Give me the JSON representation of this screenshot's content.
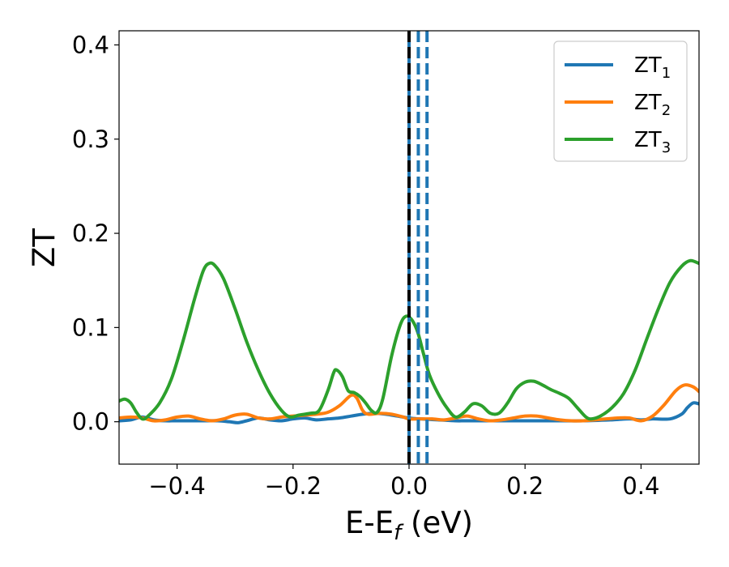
{
  "chart_data": {
    "type": "line",
    "title": "",
    "xlabel": "E-E",
    "xlabel_sub": "f",
    "xlabel_unit": " (eV)",
    "ylabel": "ZT",
    "xlim": [
      -0.5,
      0.5
    ],
    "ylim": [
      -0.045,
      0.415
    ],
    "xticks": [
      -0.4,
      -0.2,
      0.0,
      0.2,
      0.4
    ],
    "xtick_labels": [
      "−0.4",
      "−0.2",
      "0.0",
      "0.2",
      "0.4"
    ],
    "yticks": [
      0.0,
      0.1,
      0.2,
      0.3,
      0.4
    ],
    "ytick_labels": [
      "0.0",
      "0.1",
      "0.2",
      "0.3",
      "0.4"
    ],
    "grid": false,
    "legend_position": "top-right",
    "series": [
      {
        "name": "ZT",
        "name_sub": "1",
        "color": "#1f77b4",
        "points": [
          [
            -0.5,
            0.001
          ],
          [
            -0.48,
            0.002
          ],
          [
            -0.46,
            0.005
          ],
          [
            -0.44,
            0.002
          ],
          [
            -0.42,
            0.001
          ],
          [
            -0.4,
            0.001
          ],
          [
            -0.36,
            0.001
          ],
          [
            -0.33,
            0.001
          ],
          [
            -0.31,
            0.0
          ],
          [
            -0.295,
            -0.001
          ],
          [
            -0.28,
            0.001
          ],
          [
            -0.26,
            0.004
          ],
          [
            -0.24,
            0.002
          ],
          [
            -0.22,
            0.001
          ],
          [
            -0.2,
            0.003
          ],
          [
            -0.18,
            0.004
          ],
          [
            -0.16,
            0.002
          ],
          [
            -0.14,
            0.003
          ],
          [
            -0.12,
            0.004
          ],
          [
            -0.1,
            0.006
          ],
          [
            -0.08,
            0.008
          ],
          [
            -0.06,
            0.009
          ],
          [
            -0.04,
            0.008
          ],
          [
            -0.02,
            0.006
          ],
          [
            0.0,
            0.004
          ],
          [
            0.02,
            0.003
          ],
          [
            0.05,
            0.002
          ],
          [
            0.08,
            0.001
          ],
          [
            0.1,
            0.001
          ],
          [
            0.15,
            0.001
          ],
          [
            0.2,
            0.001
          ],
          [
            0.25,
            0.001
          ],
          [
            0.3,
            0.001
          ],
          [
            0.35,
            0.002
          ],
          [
            0.38,
            0.003
          ],
          [
            0.4,
            0.002
          ],
          [
            0.42,
            0.003
          ],
          [
            0.45,
            0.003
          ],
          [
            0.47,
            0.008
          ],
          [
            0.48,
            0.015
          ],
          [
            0.49,
            0.02
          ],
          [
            0.5,
            0.019
          ]
        ]
      },
      {
        "name": "ZT",
        "name_sub": "2",
        "color": "#ff7f0e",
        "points": [
          [
            -0.5,
            0.004
          ],
          [
            -0.48,
            0.005
          ],
          [
            -0.46,
            0.004
          ],
          [
            -0.44,
            0.001
          ],
          [
            -0.42,
            0.002
          ],
          [
            -0.4,
            0.005
          ],
          [
            -0.38,
            0.006
          ],
          [
            -0.36,
            0.003
          ],
          [
            -0.34,
            0.001
          ],
          [
            -0.32,
            0.003
          ],
          [
            -0.3,
            0.007
          ],
          [
            -0.28,
            0.008
          ],
          [
            -0.26,
            0.004
          ],
          [
            -0.24,
            0.003
          ],
          [
            -0.22,
            0.005
          ],
          [
            -0.2,
            0.006
          ],
          [
            -0.18,
            0.007
          ],
          [
            -0.16,
            0.008
          ],
          [
            -0.14,
            0.01
          ],
          [
            -0.12,
            0.017
          ],
          [
            -0.1,
            0.028
          ],
          [
            -0.09,
            0.025
          ],
          [
            -0.08,
            0.012
          ],
          [
            -0.07,
            0.008
          ],
          [
            -0.05,
            0.009
          ],
          [
            -0.03,
            0.008
          ],
          [
            -0.01,
            0.005
          ],
          [
            0.0,
            0.003
          ],
          [
            0.02,
            0.003
          ],
          [
            0.04,
            0.003
          ],
          [
            0.06,
            0.002
          ],
          [
            0.08,
            0.004
          ],
          [
            0.1,
            0.006
          ],
          [
            0.12,
            0.003
          ],
          [
            0.14,
            0.001
          ],
          [
            0.16,
            0.002
          ],
          [
            0.18,
            0.004
          ],
          [
            0.2,
            0.006
          ],
          [
            0.22,
            0.006
          ],
          [
            0.24,
            0.004
          ],
          [
            0.26,
            0.002
          ],
          [
            0.28,
            0.001
          ],
          [
            0.3,
            0.001
          ],
          [
            0.32,
            0.002
          ],
          [
            0.34,
            0.003
          ],
          [
            0.36,
            0.004
          ],
          [
            0.38,
            0.004
          ],
          [
            0.4,
            0.001
          ],
          [
            0.42,
            0.006
          ],
          [
            0.44,
            0.018
          ],
          [
            0.46,
            0.033
          ],
          [
            0.475,
            0.039
          ],
          [
            0.49,
            0.037
          ],
          [
            0.5,
            0.032
          ]
        ]
      },
      {
        "name": "ZT",
        "name_sub": "3",
        "color": "#2ca02c",
        "points": [
          [
            -0.5,
            0.022
          ],
          [
            -0.49,
            0.024
          ],
          [
            -0.48,
            0.02
          ],
          [
            -0.47,
            0.01
          ],
          [
            -0.46,
            0.003
          ],
          [
            -0.45,
            0.006
          ],
          [
            -0.43,
            0.02
          ],
          [
            -0.41,
            0.045
          ],
          [
            -0.39,
            0.085
          ],
          [
            -0.37,
            0.13
          ],
          [
            -0.355,
            0.16
          ],
          [
            -0.345,
            0.168
          ],
          [
            -0.335,
            0.166
          ],
          [
            -0.32,
            0.152
          ],
          [
            -0.3,
            0.12
          ],
          [
            -0.28,
            0.085
          ],
          [
            -0.26,
            0.055
          ],
          [
            -0.24,
            0.03
          ],
          [
            -0.22,
            0.012
          ],
          [
            -0.205,
            0.005
          ],
          [
            -0.19,
            0.007
          ],
          [
            -0.17,
            0.009
          ],
          [
            -0.155,
            0.012
          ],
          [
            -0.14,
            0.033
          ],
          [
            -0.13,
            0.052
          ],
          [
            -0.125,
            0.055
          ],
          [
            -0.115,
            0.048
          ],
          [
            -0.105,
            0.033
          ],
          [
            -0.095,
            0.031
          ],
          [
            -0.085,
            0.027
          ],
          [
            -0.075,
            0.02
          ],
          [
            -0.065,
            0.012
          ],
          [
            -0.055,
            0.01
          ],
          [
            -0.045,
            0.025
          ],
          [
            -0.03,
            0.07
          ],
          [
            -0.015,
            0.103
          ],
          [
            -0.005,
            0.112
          ],
          [
            0.005,
            0.108
          ],
          [
            0.015,
            0.095
          ],
          [
            0.025,
            0.072
          ],
          [
            0.035,
            0.05
          ],
          [
            0.05,
            0.03
          ],
          [
            0.065,
            0.015
          ],
          [
            0.08,
            0.005
          ],
          [
            0.095,
            0.01
          ],
          [
            0.11,
            0.019
          ],
          [
            0.125,
            0.017
          ],
          [
            0.14,
            0.009
          ],
          [
            0.155,
            0.009
          ],
          [
            0.17,
            0.02
          ],
          [
            0.185,
            0.035
          ],
          [
            0.2,
            0.042
          ],
          [
            0.215,
            0.043
          ],
          [
            0.23,
            0.039
          ],
          [
            0.245,
            0.034
          ],
          [
            0.26,
            0.03
          ],
          [
            0.275,
            0.025
          ],
          [
            0.29,
            0.015
          ],
          [
            0.305,
            0.005
          ],
          [
            0.315,
            0.003
          ],
          [
            0.33,
            0.006
          ],
          [
            0.35,
            0.015
          ],
          [
            0.37,
            0.03
          ],
          [
            0.39,
            0.055
          ],
          [
            0.41,
            0.088
          ],
          [
            0.43,
            0.12
          ],
          [
            0.45,
            0.148
          ],
          [
            0.47,
            0.165
          ],
          [
            0.485,
            0.171
          ],
          [
            0.5,
            0.168
          ]
        ]
      }
    ],
    "vlines": [
      {
        "x": 0.0,
        "color": "#1f77b4",
        "style": "solid"
      },
      {
        "x": 0.0,
        "color": "#000000",
        "style": "dashed"
      },
      {
        "x": 0.016,
        "color": "#1f77b4",
        "style": "dashed"
      },
      {
        "x": 0.031,
        "color": "#1f77b4",
        "style": "dashed"
      }
    ]
  }
}
